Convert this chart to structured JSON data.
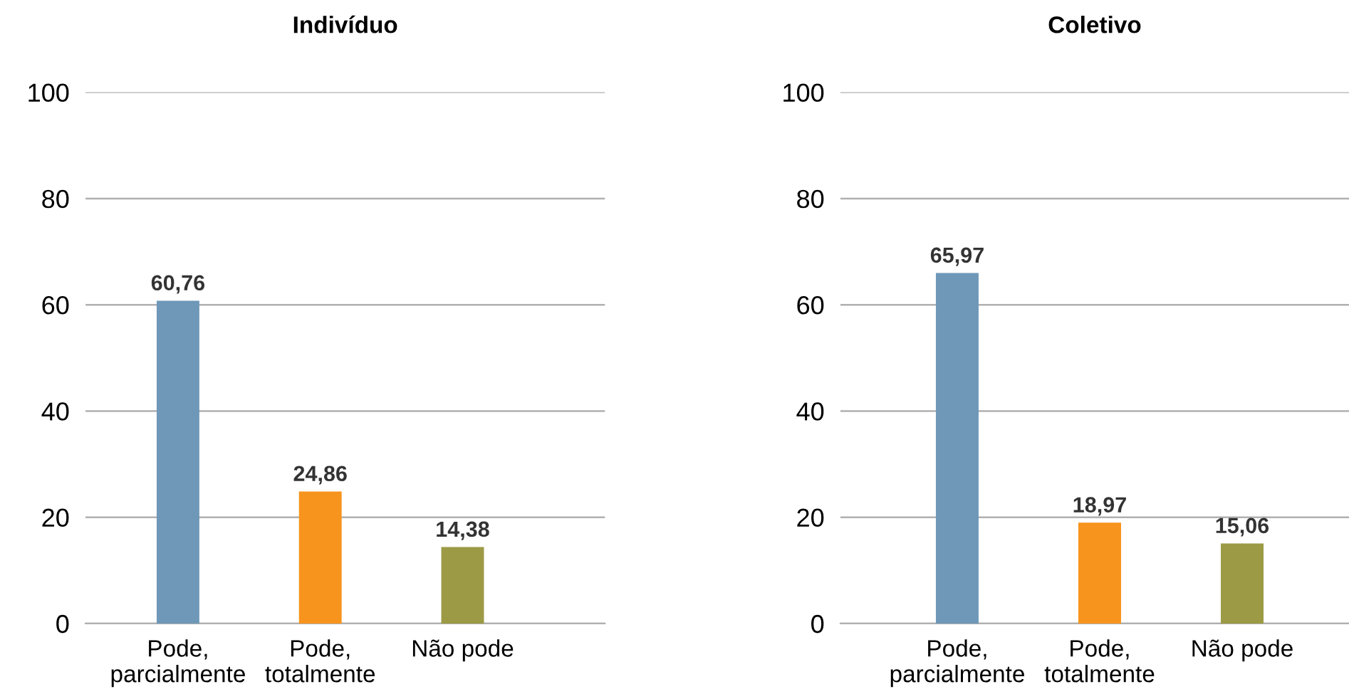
{
  "chart_data": [
    {
      "type": "bar",
      "title": "Indivíduo",
      "categories": [
        "Pode,\nparcialmente",
        "Pode,\ntotalmente",
        "Não pode"
      ],
      "values": [
        60.76,
        24.86,
        14.38
      ],
      "colors": [
        "#6f98b8",
        "#f7941d",
        "#9c9a45"
      ],
      "value_labels": [
        "60,76",
        "24,86",
        "14,38"
      ],
      "ylim": [
        0,
        100
      ],
      "yticks": [
        0,
        20,
        40,
        60,
        80,
        100
      ],
      "grid": "y",
      "legend": false
    },
    {
      "type": "bar",
      "title": "Coletivo",
      "categories": [
        "Pode,\nparcialmente",
        "Pode,\ntotalmente",
        "Não pode"
      ],
      "values": [
        65.97,
        18.97,
        15.06
      ],
      "colors": [
        "#6f98b8",
        "#f7941d",
        "#9c9a45"
      ],
      "value_labels": [
        "65,97",
        "18,97",
        "15,06"
      ],
      "ylim": [
        0,
        100
      ],
      "yticks": [
        0,
        20,
        40,
        60,
        80,
        100
      ],
      "grid": "y",
      "legend": false
    }
  ]
}
